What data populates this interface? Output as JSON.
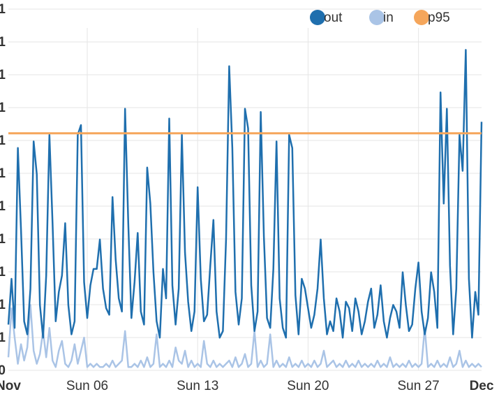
{
  "chart_data": {
    "type": "line",
    "title": "",
    "xlabel": "",
    "ylabel": "",
    "x_range": [
      "Nov 1",
      "Dec 1"
    ],
    "x_ticks": [
      "Nov",
      "Sun 06",
      "Sun 13",
      "Sun 20",
      "Sun 27",
      "Dec"
    ],
    "x_tick_days": [
      0,
      5,
      12,
      19,
      26,
      30
    ],
    "y_tick_labels_visible": [
      "0",
      "1",
      "1",
      "1",
      "1",
      "1",
      "1",
      "1",
      "1",
      "1",
      "1",
      "1"
    ],
    "grid": true,
    "legend_position": "top-right",
    "legend": [
      {
        "label": "out",
        "color": "#1f6fae"
      },
      {
        "label": "in",
        "color": "#aac4e6"
      },
      {
        "label": "p95",
        "color": "#f5a65b"
      }
    ],
    "series": [
      {
        "name": "out",
        "color": "#1f6fae",
        "points": [
          [
            0,
            1.4
          ],
          [
            0.2,
            2.8
          ],
          [
            0.4,
            1.3
          ],
          [
            0.6,
            6.8
          ],
          [
            0.8,
            4.3
          ],
          [
            1.0,
            1.5
          ],
          [
            1.2,
            1.1
          ],
          [
            1.4,
            2.5
          ],
          [
            1.6,
            7.0
          ],
          [
            1.8,
            6.0
          ],
          [
            2.0,
            2.0
          ],
          [
            2.2,
            1.0
          ],
          [
            2.4,
            2.9
          ],
          [
            2.6,
            7.2
          ],
          [
            2.8,
            4.5
          ],
          [
            3.0,
            1.5
          ],
          [
            3.2,
            2.4
          ],
          [
            3.4,
            2.9
          ],
          [
            3.6,
            4.5
          ],
          [
            3.8,
            2.0
          ],
          [
            4.0,
            1.1
          ],
          [
            4.2,
            1.5
          ],
          [
            4.4,
            7.2
          ],
          [
            4.6,
            7.5
          ],
          [
            4.8,
            2.7
          ],
          [
            5.0,
            1.6
          ],
          [
            5.2,
            2.6
          ],
          [
            5.4,
            3.1
          ],
          [
            5.6,
            3.1
          ],
          [
            5.8,
            4.0
          ],
          [
            6.0,
            2.5
          ],
          [
            6.2,
            1.9
          ],
          [
            6.4,
            1.7
          ],
          [
            6.6,
            5.3
          ],
          [
            6.8,
            3.4
          ],
          [
            7.0,
            2.2
          ],
          [
            7.2,
            1.8
          ],
          [
            7.4,
            8.0
          ],
          [
            7.6,
            4.5
          ],
          [
            7.8,
            1.6
          ],
          [
            8.0,
            2.7
          ],
          [
            8.2,
            4.2
          ],
          [
            8.4,
            1.8
          ],
          [
            8.6,
            1.4
          ],
          [
            8.8,
            6.2
          ],
          [
            9.0,
            5.1
          ],
          [
            9.2,
            3.0
          ],
          [
            9.4,
            1.5
          ],
          [
            9.6,
            1.0
          ],
          [
            9.8,
            3.1
          ],
          [
            10.0,
            2.2
          ],
          [
            10.2,
            7.7
          ],
          [
            10.4,
            2.6
          ],
          [
            10.6,
            1.4
          ],
          [
            10.8,
            2.5
          ],
          [
            11.0,
            7.2
          ],
          [
            11.2,
            3.6
          ],
          [
            11.4,
            2.1
          ],
          [
            11.6,
            1.2
          ],
          [
            11.8,
            1.8
          ],
          [
            12.0,
            5.6
          ],
          [
            12.2,
            2.8
          ],
          [
            12.4,
            1.5
          ],
          [
            12.6,
            1.7
          ],
          [
            12.8,
            3.2
          ],
          [
            13.0,
            4.6
          ],
          [
            13.2,
            1.8
          ],
          [
            13.4,
            1.0
          ],
          [
            13.6,
            1.2
          ],
          [
            13.8,
            4.0
          ],
          [
            14.0,
            9.3
          ],
          [
            14.2,
            6.8
          ],
          [
            14.4,
            2.4
          ],
          [
            14.6,
            1.4
          ],
          [
            14.8,
            2.2
          ],
          [
            15.0,
            8.0
          ],
          [
            15.2,
            7.4
          ],
          [
            15.4,
            2.6
          ],
          [
            15.6,
            1.2
          ],
          [
            15.8,
            1.8
          ],
          [
            16.0,
            7.9
          ],
          [
            16.2,
            4.1
          ],
          [
            16.4,
            1.6
          ],
          [
            16.6,
            1.3
          ],
          [
            16.8,
            3.1
          ],
          [
            17.0,
            7.0
          ],
          [
            17.2,
            2.2
          ],
          [
            17.4,
            1.3
          ],
          [
            17.6,
            1.0
          ],
          [
            17.8,
            7.2
          ],
          [
            18.0,
            6.8
          ],
          [
            18.2,
            2.3
          ],
          [
            18.4,
            1.1
          ],
          [
            18.6,
            2.8
          ],
          [
            18.8,
            2.5
          ],
          [
            19.0,
            1.9
          ],
          [
            19.2,
            1.3
          ],
          [
            19.4,
            1.7
          ],
          [
            19.6,
            2.5
          ],
          [
            19.8,
            4.0
          ],
          [
            20.0,
            2.2
          ],
          [
            20.2,
            1.1
          ],
          [
            20.4,
            1.5
          ],
          [
            20.6,
            1.2
          ],
          [
            20.8,
            2.2
          ],
          [
            21.0,
            1.8
          ],
          [
            21.2,
            1.0
          ],
          [
            21.4,
            2.1
          ],
          [
            21.6,
            1.9
          ],
          [
            21.8,
            1.2
          ],
          [
            22.0,
            2.2
          ],
          [
            22.2,
            1.8
          ],
          [
            22.4,
            1.1
          ],
          [
            22.6,
            1.5
          ],
          [
            22.8,
            2.1
          ],
          [
            23.0,
            2.5
          ],
          [
            23.2,
            1.3
          ],
          [
            23.4,
            1.7
          ],
          [
            23.6,
            2.6
          ],
          [
            23.8,
            1.5
          ],
          [
            24.0,
            1.0
          ],
          [
            24.2,
            1.6
          ],
          [
            24.4,
            2.0
          ],
          [
            24.6,
            1.8
          ],
          [
            24.8,
            1.3
          ],
          [
            25.0,
            3.0
          ],
          [
            25.2,
            2.0
          ],
          [
            25.4,
            1.2
          ],
          [
            25.6,
            1.4
          ],
          [
            25.8,
            2.5
          ],
          [
            26.0,
            3.3
          ],
          [
            26.2,
            1.8
          ],
          [
            26.4,
            1.1
          ],
          [
            26.6,
            1.6
          ],
          [
            26.8,
            3.0
          ],
          [
            27.0,
            2.4
          ],
          [
            27.2,
            1.3
          ],
          [
            27.4,
            8.5
          ],
          [
            27.6,
            5.1
          ],
          [
            27.8,
            8.0
          ],
          [
            28.0,
            3.2
          ],
          [
            28.2,
            1.1
          ],
          [
            28.4,
            2.5
          ],
          [
            28.6,
            7.2
          ],
          [
            28.8,
            6.1
          ],
          [
            29.0,
            9.8
          ],
          [
            29.2,
            2.8
          ],
          [
            29.4,
            1.0
          ],
          [
            29.6,
            2.4
          ],
          [
            29.8,
            1.7
          ],
          [
            30.0,
            7.6
          ]
        ]
      },
      {
        "name": "in",
        "color": "#aac4e6",
        "points": [
          [
            0,
            0.4
          ],
          [
            0.2,
            1.9
          ],
          [
            0.4,
            1.0
          ],
          [
            0.6,
            0.2
          ],
          [
            0.8,
            0.8
          ],
          [
            1.0,
            0.3
          ],
          [
            1.2,
            0.7
          ],
          [
            1.4,
            2.0
          ],
          [
            1.6,
            0.6
          ],
          [
            1.8,
            0.2
          ],
          [
            2.0,
            0.5
          ],
          [
            2.2,
            1.2
          ],
          [
            2.4,
            0.4
          ],
          [
            2.6,
            1.3
          ],
          [
            2.8,
            0.3
          ],
          [
            3.0,
            0.1
          ],
          [
            3.2,
            0.6
          ],
          [
            3.4,
            0.9
          ],
          [
            3.6,
            0.2
          ],
          [
            3.8,
            0.1
          ],
          [
            4.0,
            0.3
          ],
          [
            4.2,
            0.8
          ],
          [
            4.4,
            0.2
          ],
          [
            4.6,
            0.6
          ],
          [
            4.8,
            1.0
          ],
          [
            5.0,
            0.1
          ],
          [
            5.2,
            0.2
          ],
          [
            5.4,
            0.1
          ],
          [
            5.6,
            0.2
          ],
          [
            5.8,
            0.1
          ],
          [
            6.0,
            0.1
          ],
          [
            6.2,
            0.2
          ],
          [
            6.4,
            0.1
          ],
          [
            6.6,
            0.3
          ],
          [
            6.8,
            0.1
          ],
          [
            7.0,
            0.2
          ],
          [
            7.2,
            0.3
          ],
          [
            7.4,
            1.2
          ],
          [
            7.6,
            0.1
          ],
          [
            7.8,
            0.1
          ],
          [
            8.0,
            0.2
          ],
          [
            8.2,
            0.1
          ],
          [
            8.4,
            0.3
          ],
          [
            8.6,
            0.1
          ],
          [
            8.8,
            0.4
          ],
          [
            9.0,
            0.1
          ],
          [
            9.2,
            0.2
          ],
          [
            9.4,
            1.1
          ],
          [
            9.6,
            0.1
          ],
          [
            9.8,
            0.2
          ],
          [
            10.0,
            0.1
          ],
          [
            10.2,
            0.3
          ],
          [
            10.4,
            0.1
          ],
          [
            10.6,
            0.7
          ],
          [
            10.8,
            0.3
          ],
          [
            11.0,
            0.2
          ],
          [
            11.2,
            0.6
          ],
          [
            11.4,
            0.1
          ],
          [
            11.6,
            0.3
          ],
          [
            11.8,
            0.1
          ],
          [
            12.0,
            0.2
          ],
          [
            12.2,
            0.1
          ],
          [
            12.4,
            0.9
          ],
          [
            12.6,
            0.2
          ],
          [
            12.8,
            0.1
          ],
          [
            13.0,
            0.3
          ],
          [
            13.2,
            0.1
          ],
          [
            13.4,
            0.2
          ],
          [
            13.6,
            0.1
          ],
          [
            13.8,
            0.2
          ],
          [
            14.0,
            0.3
          ],
          [
            14.2,
            0.1
          ],
          [
            14.4,
            0.4
          ],
          [
            14.6,
            0.1
          ],
          [
            14.8,
            0.2
          ],
          [
            15.0,
            0.5
          ],
          [
            15.2,
            0.1
          ],
          [
            15.4,
            0.2
          ],
          [
            15.6,
            1.2
          ],
          [
            15.8,
            0.1
          ],
          [
            16.0,
            0.3
          ],
          [
            16.2,
            0.1
          ],
          [
            16.4,
            0.2
          ],
          [
            16.6,
            1.1
          ],
          [
            16.8,
            0.1
          ],
          [
            17.0,
            0.3
          ],
          [
            17.2,
            0.1
          ],
          [
            17.4,
            0.2
          ],
          [
            17.6,
            0.1
          ],
          [
            17.8,
            0.4
          ],
          [
            18.0,
            0.1
          ],
          [
            18.2,
            0.2
          ],
          [
            18.4,
            0.1
          ],
          [
            18.6,
            0.3
          ],
          [
            18.8,
            0.1
          ],
          [
            19.0,
            0.2
          ],
          [
            19.2,
            0.1
          ],
          [
            19.4,
            0.3
          ],
          [
            19.6,
            0.1
          ],
          [
            19.8,
            0.2
          ],
          [
            20.0,
            0.6
          ],
          [
            20.2,
            0.1
          ],
          [
            20.4,
            0.2
          ],
          [
            20.6,
            0.3
          ],
          [
            20.8,
            0.1
          ],
          [
            21.0,
            0.2
          ],
          [
            21.2,
            0.1
          ],
          [
            21.4,
            0.3
          ],
          [
            21.6,
            0.1
          ],
          [
            21.8,
            0.2
          ],
          [
            22.0,
            0.1
          ],
          [
            22.2,
            0.3
          ],
          [
            22.4,
            0.1
          ],
          [
            22.6,
            0.2
          ],
          [
            22.8,
            0.1
          ],
          [
            23.0,
            0.2
          ],
          [
            23.2,
            0.1
          ],
          [
            23.4,
            0.3
          ],
          [
            23.6,
            0.1
          ],
          [
            23.8,
            0.2
          ],
          [
            24.0,
            0.1
          ],
          [
            24.2,
            0.4
          ],
          [
            24.4,
            0.1
          ],
          [
            24.6,
            0.2
          ],
          [
            24.8,
            0.1
          ],
          [
            25.0,
            0.2
          ],
          [
            25.2,
            0.1
          ],
          [
            25.4,
            0.3
          ],
          [
            25.6,
            0.1
          ],
          [
            25.8,
            0.2
          ],
          [
            26.0,
            0.1
          ],
          [
            26.2,
            0.2
          ],
          [
            26.4,
            1.3
          ],
          [
            26.6,
            0.1
          ],
          [
            26.8,
            0.2
          ],
          [
            27.0,
            0.1
          ],
          [
            27.2,
            0.3
          ],
          [
            27.4,
            0.1
          ],
          [
            27.6,
            0.2
          ],
          [
            27.8,
            0.1
          ],
          [
            28.0,
            0.4
          ],
          [
            28.2,
            0.1
          ],
          [
            28.4,
            0.2
          ],
          [
            28.6,
            0.6
          ],
          [
            28.8,
            0.1
          ],
          [
            29.0,
            0.3
          ],
          [
            29.2,
            0.1
          ],
          [
            29.4,
            0.2
          ],
          [
            29.6,
            0.1
          ],
          [
            29.8,
            0.2
          ],
          [
            30.0,
            0.1
          ]
        ]
      },
      {
        "name": "p95",
        "color": "#f5a65b",
        "points": [
          [
            0,
            7.25
          ],
          [
            30.0,
            7.25
          ]
        ]
      }
    ],
    "y_range": [
      0,
      10
    ]
  }
}
